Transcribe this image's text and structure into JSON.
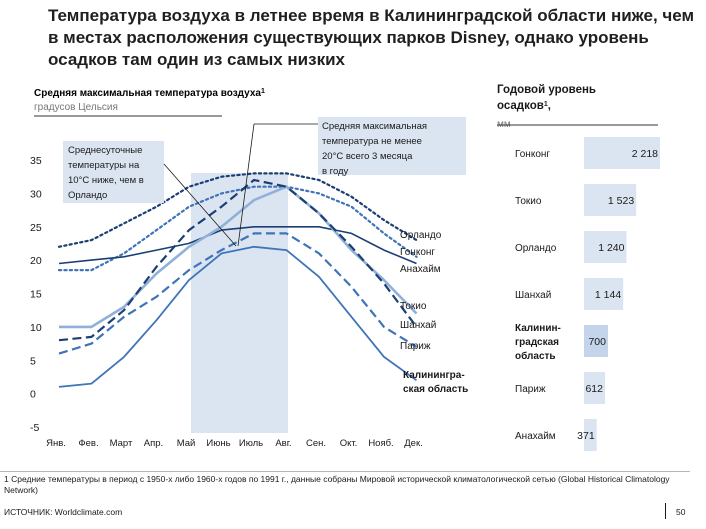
{
  "title": "Температура воздуха в летнее время в Калининградской области ниже, чем в местах расположения существующих парков Disney, однако уровень осадков там один из самых низких",
  "footnote": "1 Средние температуры в период с 1950-х либо 1960-х годов по 1991 г., данные собраны Мировой исторической климатологической сетью (Global Historical Climatology Network)",
  "source": "ИСТОЧНИК: Worldclimate.com",
  "page_number": "50",
  "colors": {
    "dark_navy": "#1c3f73",
    "mid_blue": "#3f74b8",
    "light_blue": "#8fb0d8",
    "highlight": "#dbe5f1",
    "bar": "#dbe5f1"
  },
  "chart_data": [
    {
      "type": "line",
      "title": "Средняя максимальная температура воздуха",
      "title_sup": "1",
      "ylabel": "градусов Цельсия",
      "ylim": [
        -5,
        35
      ],
      "yticks": [
        "-5",
        "0",
        "5",
        "10",
        "15",
        "20",
        "25",
        "30",
        "35"
      ],
      "categories": [
        "Янв.",
        "Фев.",
        "Март",
        "Апр.",
        "Май",
        "Июнь",
        "Июль",
        "Авг.",
        "Сен.",
        "Окт.",
        "Нояб.",
        "Дек."
      ],
      "highlight_months": [
        "Июнь",
        "Июль",
        "Авг."
      ],
      "series": [
        {
          "name": "Орландо",
          "values": [
            22,
            23,
            25.5,
            28,
            31,
            32.5,
            33,
            33,
            32,
            29.5,
            26,
            23
          ],
          "style": "dotted",
          "color": "#1c3f73"
        },
        {
          "name": "Гонконг",
          "values": [
            18.5,
            18.5,
            21,
            24.5,
            28,
            30,
            31,
            31,
            30,
            28,
            24,
            20.5
          ],
          "style": "dotted",
          "color": "#3f74b8"
        },
        {
          "name": "Анахайм",
          "values": [
            19.5,
            20,
            20.5,
            21.5,
            22.5,
            24.5,
            25,
            25,
            25,
            24,
            21.5,
            19.5
          ],
          "style": "solid",
          "color": "#1c3f73"
        },
        {
          "name": "Токио",
          "values": [
            10,
            10,
            13,
            18,
            22,
            25,
            29,
            31,
            27,
            21.5,
            17,
            12
          ],
          "style": "solid",
          "color": "#8fb0d8"
        },
        {
          "name": "Шанхай",
          "values": [
            8,
            8.5,
            12.5,
            19,
            24.5,
            28,
            32,
            31,
            27,
            22,
            16.5,
            10
          ],
          "style": "dashed",
          "color": "#1c3f73"
        },
        {
          "name": "Париж",
          "values": [
            6,
            7.5,
            11.5,
            14.5,
            18.5,
            21.5,
            24,
            24,
            21,
            16,
            10,
            7
          ],
          "style": "dashed",
          "color": "#3f74b8"
        },
        {
          "name": "Калининградская область",
          "values": [
            1,
            1.5,
            5.5,
            11,
            17,
            21,
            22,
            21.5,
            17.5,
            11.5,
            5.5,
            2
          ],
          "style": "solid",
          "color": "#3f74b8"
        }
      ],
      "legend_labels": {
        "orlando": "Орландо",
        "hongkong": "Гонконг",
        "anaheim": "Анахайм",
        "tokyo": "Токио",
        "shanghai": "Шанхай",
        "paris": "Париж",
        "kaliningrad_line1": "Калинингра-",
        "kaliningrad_line2": "ская область"
      },
      "annotations": {
        "left": [
          "Среднесуточные",
          "температуры на",
          "10°C ниже, чем в",
          "Орландо"
        ],
        "right": [
          "Средняя максимальная",
          "температура не менее",
          "20°C всего 3 месяца",
          "в году"
        ]
      }
    },
    {
      "type": "bar",
      "orientation": "horizontal",
      "title_line1": "Годовой уровень",
      "title_line2": "осадков",
      "title_sup": "1",
      "unit": "мм",
      "categories": [
        "Гонконг",
        "Токио",
        "Орландо",
        "Шанхай",
        "Калининградская область",
        "Париж",
        "Анахайм"
      ],
      "labels_display": [
        [
          "Гонконг"
        ],
        [
          "Токио"
        ],
        [
          "Орландо"
        ],
        [
          "Шанхай"
        ],
        [
          "Калинин-",
          "градская",
          "область"
        ],
        [
          "Париж"
        ],
        [
          "Анахайм"
        ]
      ],
      "values": [
        2218,
        1523,
        1240,
        1144,
        700,
        612,
        371
      ],
      "value_labels": [
        "2 218",
        "1 523",
        "1 240",
        "1 144",
        "700",
        "612",
        "371"
      ],
      "highlight": "Калининградская область"
    }
  ]
}
